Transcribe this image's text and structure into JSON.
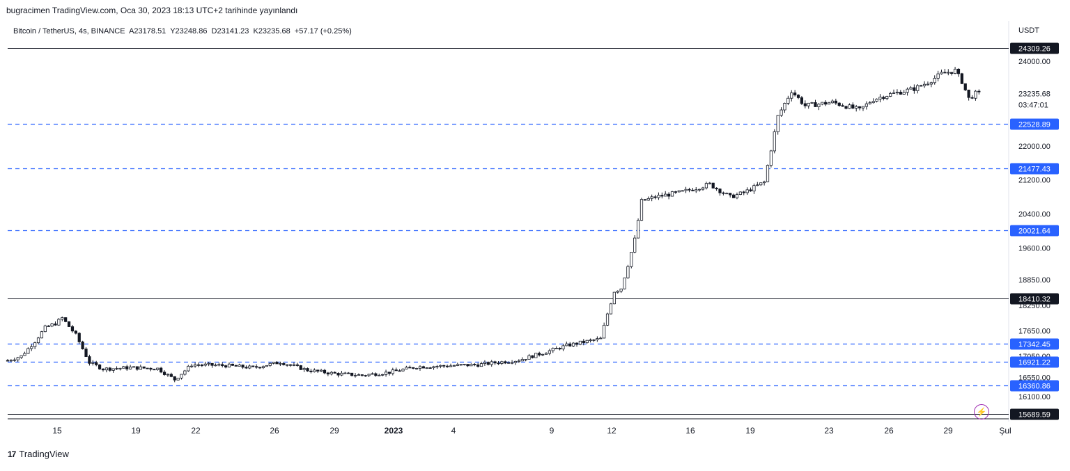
{
  "header": {
    "published_text": "bugracimen TradingView.com, Oca 30, 2023 18:13 UTC+2 tarihinde yayınlandı"
  },
  "symbol_info": {
    "text": "Bitcoin / TetherUS, 4s, BINANCE  A23178.51  Y23248.86  D23141.23  K23235.68  +57.17 (+0.25%)"
  },
  "footer": {
    "brand_mark": "17",
    "brand_name": "TradingView"
  },
  "colors": {
    "candle": "#131722",
    "dashed_level": "#2962ff",
    "solid_level": "#131722",
    "dashed_label_bg": "#2962ff",
    "solid_label_bg": "#131722",
    "flash": "#9c27b0"
  },
  "icons": {
    "flash": "lightning-icon"
  },
  "chart_data": {
    "type": "candlestick",
    "currency": "USDT",
    "y_axis_ticks": [
      "24000.00",
      "23235.68",
      "22000.00",
      "21200.00",
      "20400.00",
      "19600.00",
      "18850.00",
      "18250.00",
      "17650.00",
      "17050.00",
      "16550.00",
      "16100.00"
    ],
    "x_axis_ticks": [
      "15",
      "19",
      "22",
      "26",
      "29",
      "2023",
      "4",
      "9",
      "12",
      "16",
      "19",
      "23",
      "26",
      "29",
      "Şul"
    ],
    "current_price": "23235.68",
    "countdown": "03:47:01",
    "levels": [
      {
        "price": 24309.26,
        "label": "24309.26",
        "style": "solid"
      },
      {
        "price": 22528.89,
        "label": "22528.89",
        "style": "dashed"
      },
      {
        "price": 21477.43,
        "label": "21477.43",
        "style": "dashed"
      },
      {
        "price": 20021.64,
        "label": "20021.64",
        "style": "dashed"
      },
      {
        "price": 18410.32,
        "label": "18410.32",
        "style": "solid"
      },
      {
        "price": 17342.45,
        "label": "17342.45",
        "style": "dashed"
      },
      {
        "price": 16921.22,
        "label": "16921.22",
        "style": "dashed"
      },
      {
        "price": 16360.86,
        "label": "16360.86",
        "style": "dashed"
      },
      {
        "price": 15689.59,
        "label": "15689.59",
        "style": "solid"
      }
    ],
    "price_path": [
      [
        0,
        16950
      ],
      [
        4,
        17050
      ],
      [
        8,
        17400
      ],
      [
        11,
        17720
      ],
      [
        14,
        17820
      ],
      [
        16,
        17950
      ],
      [
        20,
        17550
      ],
      [
        24,
        16900
      ],
      [
        28,
        16750
      ],
      [
        36,
        16780
      ],
      [
        44,
        16760
      ],
      [
        49,
        16500
      ],
      [
        54,
        16850
      ],
      [
        64,
        16830
      ],
      [
        72,
        16780
      ],
      [
        80,
        16910
      ],
      [
        88,
        16720
      ],
      [
        96,
        16640
      ],
      [
        104,
        16600
      ],
      [
        112,
        16670
      ],
      [
        120,
        16800
      ],
      [
        128,
        16820
      ],
      [
        138,
        16850
      ],
      [
        150,
        16960
      ],
      [
        158,
        17150
      ],
      [
        164,
        17300
      ],
      [
        170,
        17400
      ],
      [
        174,
        17460
      ],
      [
        176,
        18050
      ],
      [
        178,
        18580
      ],
      [
        180,
        18650
      ],
      [
        182,
        19200
      ],
      [
        184,
        19800
      ],
      [
        186,
        20700
      ],
      [
        190,
        20800
      ],
      [
        198,
        20920
      ],
      [
        206,
        21100
      ],
      [
        212,
        20800
      ],
      [
        216,
        20900
      ],
      [
        222,
        21150
      ],
      [
        226,
        22700
      ],
      [
        230,
        23300
      ],
      [
        234,
        22950
      ],
      [
        242,
        23030
      ],
      [
        250,
        22850
      ],
      [
        254,
        23100
      ],
      [
        258,
        23200
      ],
      [
        266,
        23350
      ],
      [
        270,
        23500
      ],
      [
        274,
        23700
      ],
      [
        278,
        23780
      ],
      [
        280,
        23520
      ],
      [
        282,
        23120
      ],
      [
        284,
        23235.68
      ]
    ],
    "x_range": [
      0,
      288
    ],
    "y_range": [
      15689.59,
      24600
    ]
  }
}
